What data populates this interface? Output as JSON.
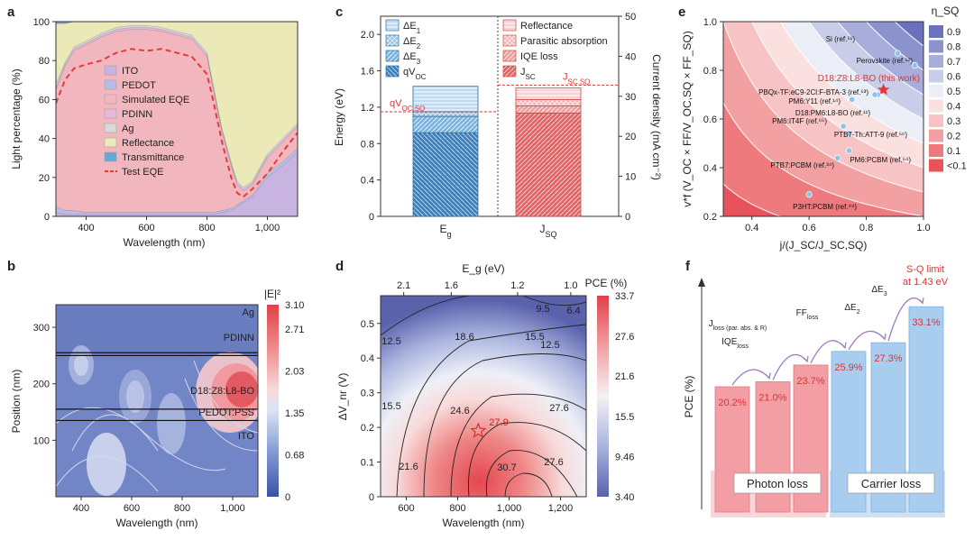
{
  "panels": {
    "a": "a",
    "b": "b",
    "c": "c",
    "d": "d",
    "e": "e",
    "f": "f"
  },
  "chart_data": [
    {
      "id": "a",
      "type": "area",
      "xlabel": "Wavelength (nm)",
      "ylabel": "Light percentage (%)",
      "xlim": [
        300,
        1100
      ],
      "ylim": [
        0,
        100
      ],
      "xticks": [
        "400",
        "600",
        "800",
        "1,000"
      ],
      "yticks": [
        "0",
        "20",
        "40",
        "60",
        "80",
        "100"
      ],
      "legend": [
        "ITO",
        "PEDOT",
        "Simulated EQE",
        "PDINN",
        "Ag",
        "Reflectance",
        "Transmittance",
        "Test EQE"
      ],
      "colors": {
        "ITO": "#c9b3e0",
        "PEDOT": "#b7bde6",
        "Simulated EQE": "#f2b7be",
        "PDINN": "#e7b7de",
        "Ag": "#d9d9d9",
        "Reflectance": "#ece9b8",
        "Transmittance": "#6aa6d8",
        "Test EQE": "#e23b3b"
      },
      "x": [
        300,
        330,
        360,
        400,
        450,
        500,
        550,
        600,
        650,
        700,
        750,
        800,
        820,
        850,
        880,
        900,
        920,
        950,
        1000,
        1050,
        1100
      ],
      "series": [
        {
          "name": "ITO",
          "values": [
            2,
            1,
            1,
            1,
            1,
            1,
            1,
            1,
            1,
            1,
            1,
            1,
            1,
            2,
            3,
            5,
            7,
            10,
            20,
            26,
            33
          ]
        },
        {
          "name": "PEDOT",
          "values": [
            3,
            2,
            2,
            1,
            1,
            1,
            1,
            1,
            1,
            1,
            1,
            1,
            1,
            1,
            1,
            1,
            1,
            1,
            2,
            2,
            2
          ]
        },
        {
          "name": "Simulated EQE",
          "values": [
            60,
            74,
            82,
            86,
            90,
            93,
            94,
            94,
            93,
            91,
            89,
            80,
            64,
            40,
            22,
            10,
            5,
            5,
            8,
            10,
            11
          ]
        },
        {
          "name": "PDINN",
          "values": [
            1,
            1,
            1,
            1,
            1,
            1,
            1,
            1,
            1,
            1,
            1,
            1,
            1,
            1,
            1,
            1,
            1,
            1,
            1,
            1,
            1
          ]
        },
        {
          "name": "Ag",
          "values": [
            2,
            1,
            1,
            1,
            1,
            1,
            1,
            1,
            1,
            1,
            1,
            1,
            1,
            1,
            1,
            1,
            1,
            1,
            1,
            1,
            1
          ]
        },
        {
          "name": "Reflectance",
          "values": [
            31,
            20,
            14,
            10,
            6,
            3,
            2,
            2,
            3,
            5,
            7,
            16,
            32,
            55,
            72,
            82,
            85,
            83,
            68,
            60,
            52
          ]
        },
        {
          "name": "Transmittance",
          "values": [
            1,
            1,
            1,
            0,
            0,
            0,
            0,
            0,
            0,
            0,
            0,
            0,
            0,
            0,
            0,
            0,
            0,
            0,
            0,
            0,
            0
          ]
        }
      ],
      "test_eqe": {
        "name": "Test EQE",
        "x": [
          300,
          330,
          360,
          400,
          450,
          500,
          550,
          600,
          650,
          700,
          750,
          800,
          820,
          850,
          880,
          900,
          920,
          950,
          1000,
          1050,
          1100
        ],
        "values": [
          58,
          70,
          76,
          78,
          80,
          84,
          86,
          85,
          86,
          84,
          82,
          73,
          60,
          38,
          20,
          12,
          10,
          14,
          22,
          33,
          43
        ]
      }
    },
    {
      "id": "b",
      "type": "heatmap",
      "xlabel": "Wavelength (nm)",
      "ylabel": "Position (nm)",
      "colorbar_label": "|E|²",
      "xlim": [
        300,
        1100
      ],
      "ylim": [
        0,
        340
      ],
      "xticks": [
        "400",
        "600",
        "800",
        "1,000"
      ],
      "yticks": [
        "100",
        "200",
        "300"
      ],
      "colorbar_ticks": [
        "3.10",
        "2.71",
        "2.03",
        "1.35",
        "0.68",
        "0"
      ],
      "colorbar_range": [
        0,
        3.1
      ],
      "layers": [
        {
          "name": "Ag",
          "boundary": null
        },
        {
          "name": "PDINN",
          "boundary": 255
        },
        {
          "name": "D18:Z8:L8-BO",
          "boundary": 250
        },
        {
          "name": "PEDOT:PSS",
          "boundary": 155
        },
        {
          "name": "ITO",
          "boundary": 135
        }
      ]
    },
    {
      "id": "c",
      "type": "bar",
      "categories": [
        "E_g",
        "J_SQ"
      ],
      "ylabel_left": "Energy (eV)",
      "ylabel_right": "Current density (mA cm⁻²)",
      "ylim_left": [
        0,
        2.2
      ],
      "ylim_right": [
        0,
        50
      ],
      "yticks_left": [
        "0",
        "0.4",
        "0.8",
        "1.2",
        "1.6",
        "2.0"
      ],
      "yticks_right": [
        "0",
        "10",
        "20",
        "30",
        "40",
        "50"
      ],
      "energy_stack": [
        {
          "name": "qV_OC",
          "value": 0.92
        },
        {
          "name": "ΔE3",
          "value": 0.18
        },
        {
          "name": "ΔE2",
          "value": 0.05
        },
        {
          "name": "ΔE1",
          "value": 0.28
        }
      ],
      "current_stack": [
        {
          "name": "J_SC",
          "value": 25.8
        },
        {
          "name": "IQE loss",
          "value": 1.8
        },
        {
          "name": "Parasitic absorption",
          "value": 1.6
        },
        {
          "name": "Reflectance",
          "value": 2.9
        }
      ],
      "ref_lines": {
        "qV_OC,SQ": 1.15,
        "J_SC,SQ": 32.8
      },
      "legend_left": [
        "ΔE1",
        "ΔE2",
        "ΔE3",
        "qV_OC"
      ],
      "legend_right": [
        "Reflectance",
        "Parasitic absorption",
        "IQE loss",
        "J_SC"
      ]
    },
    {
      "id": "d",
      "type": "heatmap",
      "xlabel": "Wavelength (nm)",
      "ylabel": "ΔV_nr (V)",
      "top_label": "E_g (eV)",
      "colorbar_label": "PCE (%)",
      "xlim": [
        500,
        1300
      ],
      "ylim": [
        0,
        0.58
      ],
      "xticks": [
        "600",
        "800",
        "1,000",
        "1,200"
      ],
      "yticks": [
        "0",
        "0.1",
        "0.2",
        "0.3",
        "0.4",
        "0.5"
      ],
      "top_ticks": [
        "2.1",
        "1.6",
        "1.2",
        "1.0"
      ],
      "colorbar_ticks": [
        "33.7",
        "27.6",
        "21.6",
        "15.5",
        "9.46",
        "3.40"
      ],
      "colorbar_range": [
        3.4,
        33.7
      ],
      "contour_labels": [
        "9.5",
        "6.4",
        "12.5",
        "18.6",
        "15.5",
        "12.5",
        "15.5",
        "24.6",
        "27.6",
        "21.6",
        "30.7",
        "27.6"
      ],
      "marker": {
        "x": 880,
        "y": 0.19,
        "label": "27.9"
      }
    },
    {
      "id": "e",
      "type": "scatter",
      "xlabel": "j/(J_SC/J_SC,SQ)",
      "ylabel": "v*f (V_OC × FF/V_OC,SQ × FF_SQ)",
      "colorbar_label": "η_SQ",
      "xlim": [
        0.3,
        1.0
      ],
      "ylim": [
        0.2,
        1.0
      ],
      "xticks": [
        "0.4",
        "0.6",
        "0.8",
        "1.0"
      ],
      "yticks": [
        "0.2",
        "0.4",
        "0.6",
        "0.8",
        "1.0"
      ],
      "colorbar_ticks": [
        "0.9",
        "0.8",
        "0.7",
        "0.6",
        "0.5",
        "0.4",
        "0.3",
        "0.2",
        "0.1",
        "<0.1"
      ],
      "points": [
        {
          "label": "Si (ref.⁵¹)",
          "x": 0.91,
          "y": 0.87
        },
        {
          "label": "Perovskite (ref.⁵²)",
          "x": 0.97,
          "y": 0.82
        },
        {
          "label": "D18:Z8:L8-BO (this work)",
          "x": 0.86,
          "y": 0.72,
          "highlight": true
        },
        {
          "label": "PBQx-TF:eC9-2Cl:F-BTA-3 (ref.⁵³)",
          "x": 0.84,
          "y": 0.7
        },
        {
          "label": "PM6:Y11 (ref.¹⁴)",
          "x": 0.75,
          "y": 0.68
        },
        {
          "label": "D18:PM6:L8-BO (ref.¹¹)",
          "x": 0.83,
          "y": 0.7
        },
        {
          "label": "PM6:IT4F (ref.⁵⁵)",
          "x": 0.72,
          "y": 0.57
        },
        {
          "label": "PTB7-Th:ATT-9 (ref.⁵⁶)",
          "x": 0.74,
          "y": 0.54
        },
        {
          "label": "PM6:PCBM (ref.⁵⁴)",
          "x": 0.74,
          "y": 0.47
        },
        {
          "label": "PTB7:PCBM (ref.³⁴)",
          "x": 0.7,
          "y": 0.44
        },
        {
          "label": "P3HT:PCBM (ref.⁴⁸)",
          "x": 0.6,
          "y": 0.29
        }
      ]
    },
    {
      "id": "f",
      "type": "bar",
      "ylabel": "PCE (%)",
      "categories": [
        "20.2%",
        "21.0%",
        "23.7%",
        "25.9%",
        "27.3%",
        "33.1%"
      ],
      "values": [
        20.2,
        21.0,
        23.7,
        25.9,
        27.3,
        33.1
      ],
      "group_labels": [
        "Photon loss",
        "Carrier loss"
      ],
      "step_labels": [
        "IQE_loss",
        "J_loss (par. abs. & R)",
        "FF_loss",
        "ΔE2",
        "ΔE3"
      ],
      "limit_label_line1": "S-Q limit",
      "limit_label_line2": "at 1.43 eV"
    }
  ]
}
